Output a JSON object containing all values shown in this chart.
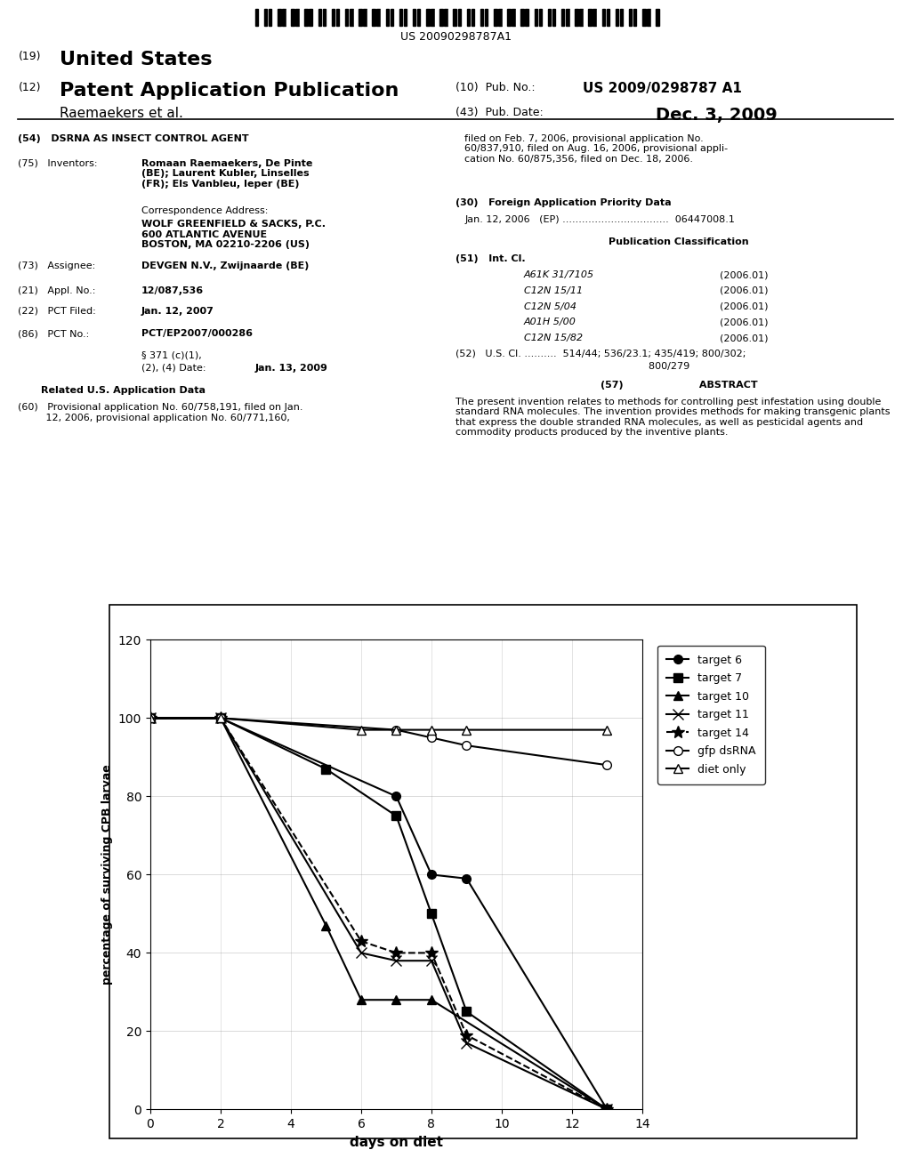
{
  "series": {
    "target_6": {
      "x": [
        0,
        2,
        7,
        8,
        9,
        13
      ],
      "y": [
        100,
        100,
        80,
        60,
        59,
        0
      ],
      "label": "target 6",
      "marker": "o",
      "markerfacecolor": "black",
      "markeredgecolor": "black",
      "linestyle": "-",
      "color": "black",
      "markersize": 7
    },
    "target_7": {
      "x": [
        0,
        2,
        5,
        7,
        8,
        9,
        13
      ],
      "y": [
        100,
        100,
        87,
        75,
        50,
        25,
        0
      ],
      "label": "target 7",
      "marker": "s",
      "markerfacecolor": "black",
      "markeredgecolor": "black",
      "linestyle": "-",
      "color": "black",
      "markersize": 7
    },
    "target_10": {
      "x": [
        0,
        2,
        5,
        6,
        7,
        8,
        13
      ],
      "y": [
        100,
        100,
        47,
        28,
        28,
        28,
        0
      ],
      "label": "target 10",
      "marker": "^",
      "markerfacecolor": "black",
      "markeredgecolor": "black",
      "linestyle": "-",
      "color": "black",
      "markersize": 7
    },
    "target_11": {
      "x": [
        0,
        2,
        6,
        7,
        8,
        9,
        13
      ],
      "y": [
        100,
        100,
        40,
        38,
        38,
        17,
        0
      ],
      "label": "target 11",
      "marker": "x",
      "markerfacecolor": "black",
      "markeredgecolor": "black",
      "linestyle": "-",
      "color": "black",
      "markersize": 8
    },
    "target_14": {
      "x": [
        0,
        2,
        6,
        7,
        8,
        9,
        13
      ],
      "y": [
        100,
        100,
        43,
        40,
        40,
        19,
        0
      ],
      "label": "target 14",
      "marker": "*",
      "markerfacecolor": "black",
      "markeredgecolor": "black",
      "linestyle": "--",
      "color": "black",
      "markersize": 10
    },
    "gfp_dsRNA": {
      "x": [
        0,
        2,
        7,
        8,
        9,
        13
      ],
      "y": [
        100,
        100,
        97,
        95,
        93,
        88
      ],
      "label": "gfp dsRNA",
      "marker": "o",
      "markerfacecolor": "white",
      "markeredgecolor": "black",
      "linestyle": "-",
      "color": "black",
      "markersize": 7
    },
    "diet_only": {
      "x": [
        0,
        2,
        6,
        7,
        8,
        9,
        13
      ],
      "y": [
        100,
        100,
        97,
        97,
        97,
        97,
        97
      ],
      "label": "diet only",
      "marker": "^",
      "markerfacecolor": "white",
      "markeredgecolor": "black",
      "linestyle": "-",
      "color": "black",
      "markersize": 7
    }
  },
  "xlabel": "days on diet",
  "ylabel": "percentage of surviving CPB larvae",
  "xlim": [
    0,
    14
  ],
  "ylim": [
    0,
    120
  ],
  "xticks": [
    0,
    2,
    4,
    6,
    8,
    10,
    12,
    14
  ],
  "yticks": [
    0,
    20,
    40,
    60,
    80,
    100,
    120
  ],
  "patent_number": "US 20090298787A1",
  "title_19": "(19)",
  "title_us": "United States",
  "title_12": "(12)",
  "title_pap": "Patent Application Publication",
  "subtitle_raemaekers": "Raemaekers et al.",
  "pub_no_label": "(10)  Pub. No.:",
  "pub_no_value": "US 2009/0298787 A1",
  "pub_date_label": "(43)  Pub. Date:",
  "pub_date_value": "Dec. 3, 2009",
  "field54": "(54)   DSRNA AS INSECT CONTROL AGENT",
  "field75_label": "(75)   Inventors:",
  "field75_value": "Romaan Raemaekers, De Pinte\n(BE); Laurent Kubler, Linselles\n(FR); Els Vanbleu, Ieper (BE)",
  "corr_label": "Correspondence Address:",
  "corr_value": "WOLF GREENFIELD & SACKS, P.C.\n600 ATLANTIC AVENUE\nBOSTON, MA 02210-2206 (US)",
  "field73_label": "(73)   Assignee:",
  "field73_value": "DEVGEN N.V., Zwijnaarde (BE)",
  "field21_label": "(21)   Appl. No.:",
  "field21_value": "12/087,536",
  "field22_label": "(22)   PCT Filed:",
  "field22_value": "Jan. 12, 2007",
  "field86_label": "(86)   PCT No.:",
  "field86_value": "PCT/EP2007/000286",
  "field86b_1": "§ 371 (c)(1),",
  "field86b_2": "(2), (4) Date:",
  "field86b_date": "Jan. 13, 2009",
  "related_us": "Related U.S. Application Data",
  "field60": "(60)   Provisional application No. 60/758,191, filed on Jan.\n         12, 2006, provisional application No. 60/771,160,",
  "right_col_top": "filed on Feb. 7, 2006, provisional application No.\n60/837,910, filed on Aug. 16, 2006, provisional appli-\ncation No. 60/875,356, filed on Dec. 18, 2006.",
  "field30_label": "(30)   Foreign Application Priority Data",
  "field30_value": "Jan. 12, 2006   (EP) .................................  06447008.1",
  "pub_class_label": "Publication Classification",
  "field51": "(51)   Int. Cl.",
  "int_cl_items": [
    [
      "A61K 31/7105",
      "(2006.01)"
    ],
    [
      "C12N 15/11",
      "(2006.01)"
    ],
    [
      "C12N 5/04",
      "(2006.01)"
    ],
    [
      "A01H 5/00",
      "(2006.01)"
    ],
    [
      "C12N 15/82",
      "(2006.01)"
    ]
  ],
  "field52_label": "(52)   U.S. Cl. ..........  514/44; 536/23.1; 435/419; 800/302;",
  "field52_cont": "                                                              800/279",
  "field57_label": "(57)                      ABSTRACT",
  "abstract": "The present invention relates to methods for controlling pest infestation using double standard RNA molecules. The invention provides methods for making transgenic plants that express the double stranded RNA molecules, as well as pesticidal agents and commodity products produced by the inventive plants."
}
